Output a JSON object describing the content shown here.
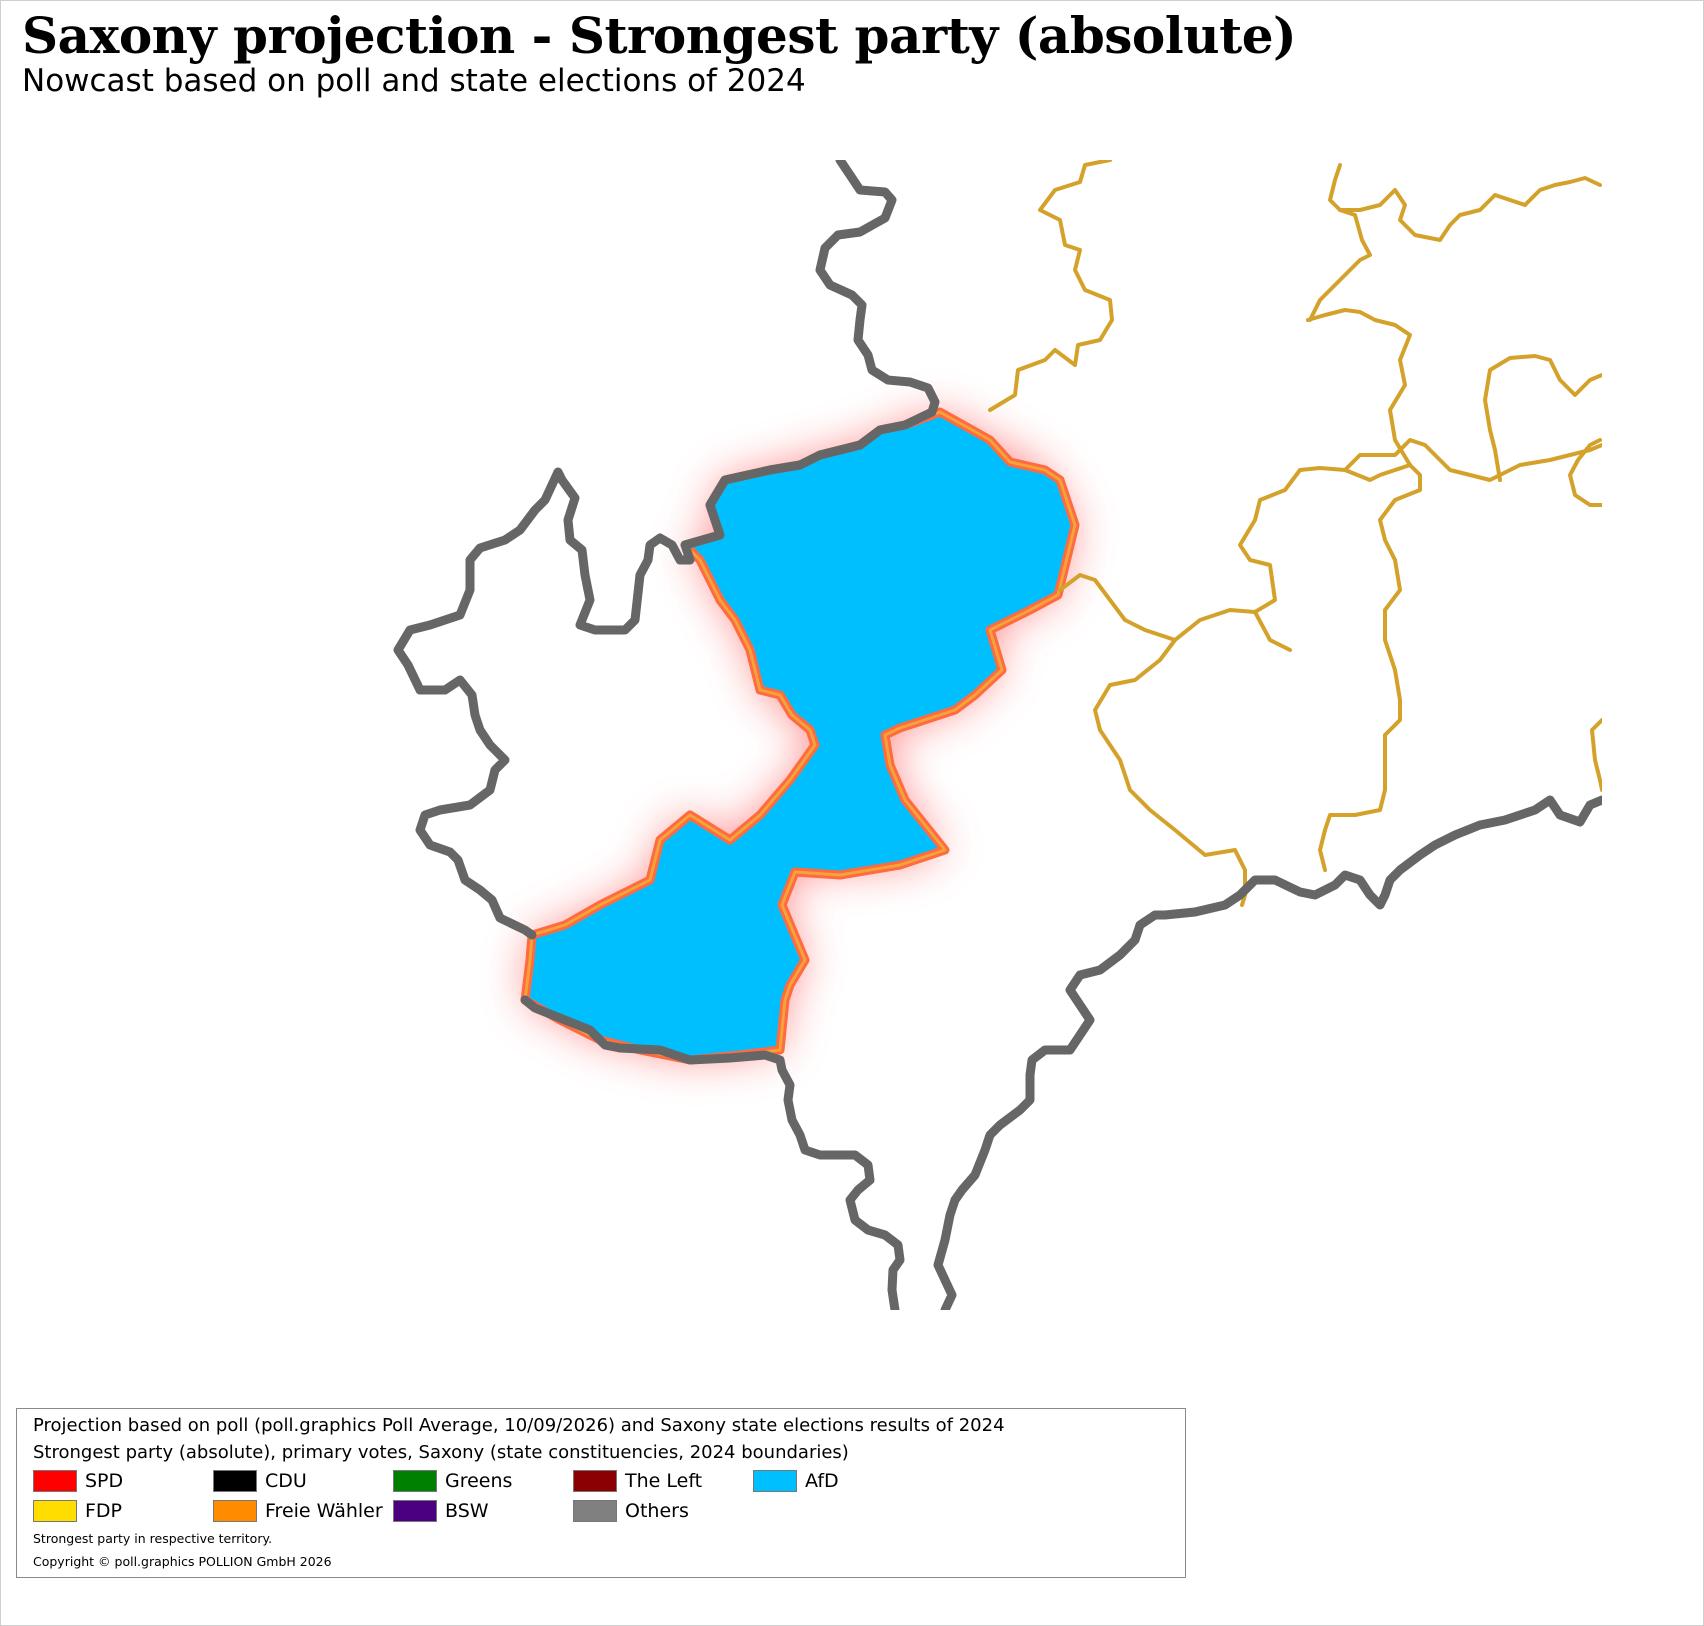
{
  "title": "Saxony projection - Strongest party (absolute)",
  "subtitle": "Nowcast based on poll and state elections of 2024",
  "legend": {
    "line1": "Projection based on poll (poll.graphics Poll Average, 10/09/2026) and Saxony state elections results of 2024",
    "line2": "Strongest party (absolute), primary votes, Saxony (state constituencies, 2024 boundaries)",
    "items": [
      {
        "label": "SPD",
        "color": "#ff0000"
      },
      {
        "label": "CDU",
        "color": "#000000"
      },
      {
        "label": "Greens",
        "color": "#008000"
      },
      {
        "label": "The Left",
        "color": "#8b0000"
      },
      {
        "label": "AfD",
        "color": "#00bfff"
      },
      {
        "label": "FDP",
        "color": "#ffdd00"
      },
      {
        "label": "Freie Wähler",
        "color": "#ff8c00"
      },
      {
        "label": "BSW",
        "color": "#4b0082"
      },
      {
        "label": "Others",
        "color": "#808080"
      }
    ],
    "note1": "Strongest party in respective territory.",
    "note2": "Copyright © poll.graphics POLLION GmbH 2026"
  },
  "map": {
    "highlighted_region_party": "AfD",
    "highlighted_fill": "#00bfff",
    "highlight_outline": "#ff8c00",
    "highlight_glow": "#ff0000",
    "state_border_color": "#666666",
    "other_constituency_border": "#d4a22a"
  }
}
